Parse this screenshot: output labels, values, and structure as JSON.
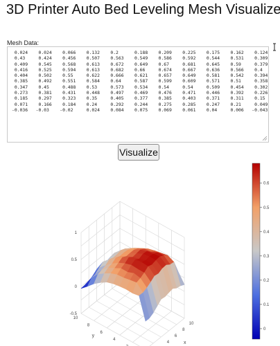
{
  "page": {
    "title": "3D Printer Auto Bed Leveling Mesh Visualizer"
  },
  "mesh": {
    "label": "Mesh Data:",
    "rows": [
      [
        "0.024",
        "0.024",
        "0.066",
        "0.132",
        "0.2",
        "0.188",
        "0.209",
        "0.225",
        "0.175",
        "0.162",
        "0.124"
      ],
      [
        "0.43",
        "0.424",
        "0.456",
        "0.507",
        "0.563",
        "0.549",
        "0.586",
        "0.592",
        "0.544",
        "0.531",
        "0.309"
      ],
      [
        "0.409",
        "0.545",
        "0.568",
        "0.613",
        "0.672",
        "0.649",
        "0.67",
        "0.681",
        "0.645",
        "0.59",
        "0.379"
      ],
      [
        "0.416",
        "0.525",
        "0.594",
        "0.613",
        "0.682",
        "0.66",
        "0.674",
        "0.667",
        "0.636",
        "0.566",
        "0.4"
      ],
      [
        "0.404",
        "0.502",
        "0.55",
        "0.622",
        "0.666",
        "0.621",
        "0.657",
        "0.649",
        "0.581",
        "0.542",
        "0.394"
      ],
      [
        "0.385",
        "0.492",
        "0.551",
        "0.584",
        "0.64",
        "0.587",
        "0.599",
        "0.609",
        "0.571",
        "0.51",
        "0.358"
      ],
      [
        "0.347",
        "0.45",
        "0.488",
        "0.53",
        "0.573",
        "0.534",
        "0.54",
        "0.54",
        "0.509",
        "0.454",
        "0.302"
      ],
      [
        "0.273",
        "0.381",
        "0.431",
        "0.448",
        "0.497",
        "0.469",
        "0.476",
        "0.471",
        "0.446",
        "0.392",
        "0.226"
      ],
      [
        "0.185",
        "0.297",
        "0.323",
        "0.35",
        "0.405",
        "0.377",
        "0.385",
        "0.403",
        "0.371",
        "0.311",
        "0.15"
      ],
      [
        "0.071",
        "0.166",
        "0.184",
        "0.24",
        "0.292",
        "0.244",
        "0.275",
        "0.285",
        "0.247",
        "0.21",
        "0.049"
      ],
      [
        "-0.036",
        "-0.03",
        "-0.02",
        "0.024",
        "0.084",
        "0.075",
        "0.069",
        "0.061",
        "0.04",
        "0.006",
        "-0.043"
      ]
    ]
  },
  "button": {
    "visualize_label": "Visualize"
  },
  "chart_data": {
    "type": "surface",
    "x_ticks": [
      "0",
      "2",
      "4",
      "6",
      "8",
      "10"
    ],
    "y_ticks": [
      "0",
      "2",
      "4",
      "6",
      "8",
      "10"
    ],
    "x_axis_label": "x",
    "y_axis_label": "y",
    "z_ticks": [
      "0",
      "0.5",
      "1"
    ],
    "z_range": [
      -0.5,
      1
    ],
    "colorbar": {
      "ticks": [
        "0",
        "0.1",
        "0.2",
        "0.3",
        "0.4",
        "0.5",
        "0.6"
      ],
      "range": [
        -0.043,
        0.682
      ],
      "colorscale": [
        "#0000b4",
        "#4d6fe0",
        "#c8c8c8",
        "#f2a068",
        "#b40000"
      ]
    }
  }
}
